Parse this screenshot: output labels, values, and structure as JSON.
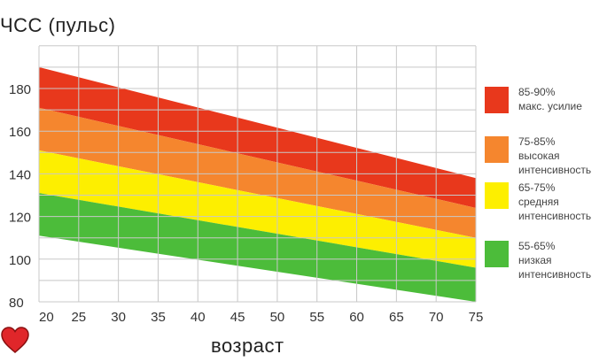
{
  "chart_data": {
    "type": "area",
    "title": "ЧСС (пульс)",
    "ylabel": "ЧСС (пульс)",
    "xlabel": "возраст",
    "x_ticks": [
      20,
      25,
      30,
      35,
      40,
      45,
      50,
      55,
      60,
      65,
      70,
      75
    ],
    "y_ticks": [
      80,
      100,
      120,
      140,
      160,
      180
    ],
    "xlim": [
      20,
      75
    ],
    "ylim": [
      80,
      200
    ],
    "grid": true,
    "legend_position": "right",
    "bands": [
      {
        "name": "85-90%\nмакс. усилие",
        "color": "#e8381c",
        "lower": {
          "x": [
            20,
            75
          ],
          "y": [
            171,
            124
          ]
        },
        "upper": {
          "x": [
            20,
            75
          ],
          "y": [
            190,
            138
          ]
        }
      },
      {
        "name": "75-85%\nвысокая\nинтенсивность",
        "color": "#f5862e",
        "lower": {
          "x": [
            20,
            75
          ],
          "y": [
            151,
            110
          ]
        },
        "upper": {
          "x": [
            20,
            75
          ],
          "y": [
            171,
            124
          ]
        }
      },
      {
        "name": "65-75%\nсредняя\nинтенсивность",
        "color": "#fdef00",
        "lower": {
          "x": [
            20,
            75
          ],
          "y": [
            131,
            96
          ]
        },
        "upper": {
          "x": [
            20,
            75
          ],
          "y": [
            151,
            110
          ]
        }
      },
      {
        "name": "55-65%\nнизкая\nинтенсивность",
        "color": "#4cbc3a",
        "lower": {
          "x": [
            20,
            75
          ],
          "y": [
            111,
            80
          ]
        },
        "upper": {
          "x": [
            20,
            75
          ],
          "y": [
            131,
            96
          ]
        }
      }
    ]
  },
  "decor": {
    "heart_icon": "heart-icon",
    "heart_color": "#e0262a"
  }
}
